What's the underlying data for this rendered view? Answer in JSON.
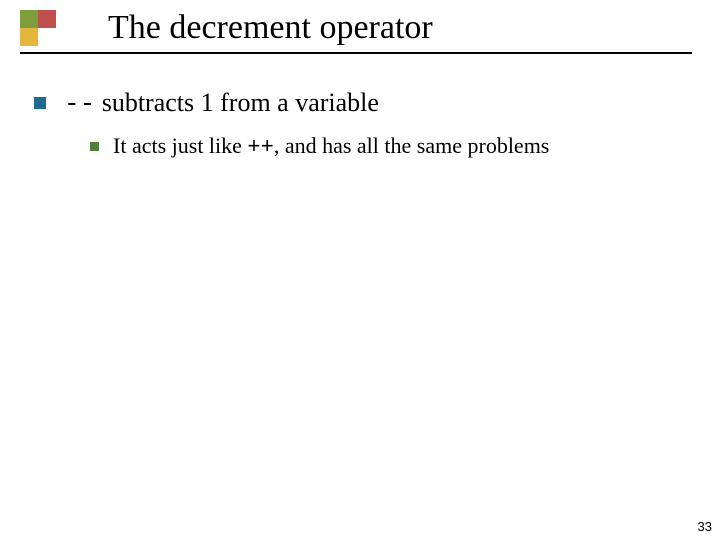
{
  "slide": {
    "title": "The decrement operator",
    "page_number": "33",
    "corner_colors": {
      "top_left": "#7e9e3d",
      "top_right": "#c0504d",
      "bottom_left": "#e4b63c",
      "bottom_right": "#ffffff"
    },
    "underline_color": "#000000",
    "bullet_l1_color": "#1f6b8f",
    "bullet_l2_color": "#4f7f3a",
    "bullets": [
      {
        "code_prefix": "--",
        "text_prefix": " ",
        "text": "subtracts 1 from a variable",
        "sub": [
          {
            "pre": "It acts just like ",
            "code": "++",
            "post": ", and has all the same problems"
          }
        ]
      }
    ]
  }
}
